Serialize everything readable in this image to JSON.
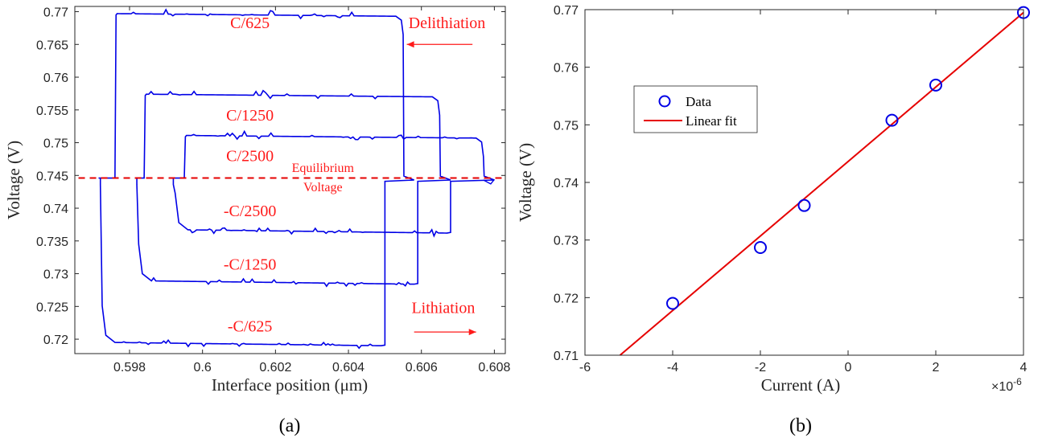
{
  "colors": {
    "curve": "#0000e6",
    "fit": "#e60000",
    "annotation": "#ff1a1a",
    "axis": "#262626"
  },
  "chart_data": [
    {
      "type": "line",
      "panel_label": "(a)",
      "xlabel": "Interface position (μm)",
      "ylabel": "Voltage (V)",
      "xlim": [
        0.5965,
        0.6083
      ],
      "ylim": [
        0.7178,
        0.7708
      ],
      "xticks": [
        0.598,
        0.6,
        0.602,
        0.604,
        0.606,
        0.608
      ],
      "xtick_labels": [
        "0.598",
        "0.6",
        "0.602",
        "0.604",
        "0.606",
        "0.608"
      ],
      "yticks": [
        0.72,
        0.725,
        0.73,
        0.735,
        0.74,
        0.745,
        0.75,
        0.755,
        0.76,
        0.765,
        0.77
      ],
      "ytick_labels": [
        "0.72",
        "0.725",
        "0.73",
        "0.735",
        "0.74",
        "0.745",
        "0.75",
        "0.755",
        "0.76",
        "0.765",
        "0.77"
      ],
      "equilibrium_voltage": 0.7446,
      "grid": false,
      "series": [
        {
          "rate": "C/625",
          "upper": 0.7695,
          "lower": 0.7191,
          "x_left": 0.5972,
          "x_right_upper": 0.6055,
          "x_right_lower": 0.605,
          "x_step": 0.5976
        },
        {
          "rate": "C/1250",
          "upper": 0.7572,
          "lower": 0.7285,
          "x_left": 0.5982,
          "x_right_upper": 0.6065,
          "x_right_lower": 0.6059,
          "x_step": 0.5984
        },
        {
          "rate": "C/2500",
          "upper": 0.7509,
          "lower": 0.7363,
          "x_left": 0.5992,
          "x_right_upper": 0.6077,
          "x_right_lower": 0.6068,
          "x_step": 0.5995
        }
      ],
      "annotations": [
        {
          "text": "C/625",
          "x": 0.6013,
          "y": 0.7675
        },
        {
          "text": "C/1250",
          "x": 0.6013,
          "y": 0.7534
        },
        {
          "text": "C/2500",
          "x": 0.6013,
          "y": 0.7472
        },
        {
          "text": "-C/2500",
          "x": 0.6013,
          "y": 0.7388
        },
        {
          "text": "-C/1250",
          "x": 0.6013,
          "y": 0.7306
        },
        {
          "text": "-C/625",
          "x": 0.6013,
          "y": 0.7212
        },
        {
          "text": "Delithiation",
          "x": 0.6067,
          "y": 0.7675
        },
        {
          "text": "Lithiation",
          "x": 0.6066,
          "y": 0.724
        }
      ],
      "eq_label_lines": [
        "Equilibrium",
        "Voltage"
      ]
    },
    {
      "type": "scatter",
      "panel_label": "(b)",
      "xlabel": "Current (A)",
      "ylabel": "Voltage (V)",
      "x_exponent_label": "×10",
      "x_exponent": "-6",
      "xlim": [
        -6,
        4
      ],
      "ylim": [
        0.71,
        0.77
      ],
      "xticks": [
        -6,
        -4,
        -2,
        0,
        2,
        4
      ],
      "xtick_labels": [
        "-6",
        "-4",
        "-2",
        "0",
        "2",
        "4"
      ],
      "yticks": [
        0.71,
        0.72,
        0.73,
        0.74,
        0.75,
        0.76,
        0.77
      ],
      "ytick_labels": [
        "0.71",
        "0.72",
        "0.73",
        "0.74",
        "0.75",
        "0.76",
        "0.77"
      ],
      "grid": false,
      "legend_position": "upper-left",
      "series": [
        {
          "name": "Data",
          "x": [
            -4.0,
            -2.0,
            -1.0,
            1.0,
            2.0,
            4.0
          ],
          "y": [
            0.719,
            0.7287,
            0.736,
            0.7508,
            0.7569,
            0.7695
          ]
        },
        {
          "name": "Linear fit",
          "x": [
            -5.2,
            4.0
          ],
          "y": [
            0.71,
            0.7695
          ]
        }
      ]
    }
  ]
}
